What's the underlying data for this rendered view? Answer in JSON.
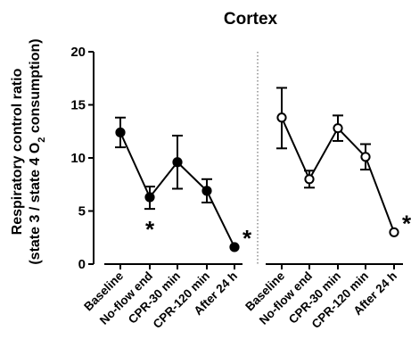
{
  "chart_data": {
    "type": "line",
    "title": "Cortex",
    "ylabel_line1": "Respiratory control ratio",
    "ylabel_line2_pre": "(state 3 / state 4 O",
    "ylabel_line2_sub": "2",
    "ylabel_line2_post": " consumption)",
    "ylim": [
      0,
      20
    ],
    "yticks": [
      "0",
      "5",
      "10",
      "15",
      "20"
    ],
    "categories": [
      "Baseline",
      "No-flow end",
      "CPR-30 min",
      "CPR-120 min",
      "After 24 h"
    ],
    "series": [
      {
        "marker": "filled-circle",
        "values": [
          12.4,
          6.3,
          9.6,
          6.9,
          1.6
        ],
        "err_low": [
          11.0,
          5.2,
          7.1,
          5.8,
          1.6
        ],
        "err_high": [
          13.8,
          7.3,
          12.1,
          8.0,
          1.6
        ],
        "significance": [
          "",
          "*",
          "",
          "",
          "*"
        ]
      },
      {
        "marker": "open-circle",
        "values": [
          13.8,
          8.0,
          12.8,
          10.1,
          3.0
        ],
        "err_low": [
          10.9,
          7.2,
          11.6,
          8.9,
          3.0
        ],
        "err_high": [
          16.6,
          8.8,
          14.0,
          11.3,
          3.0
        ],
        "significance": [
          "",
          "",
          "",
          "",
          "*"
        ]
      }
    ],
    "grid": false,
    "divider": "dotted vertical line between groups"
  }
}
